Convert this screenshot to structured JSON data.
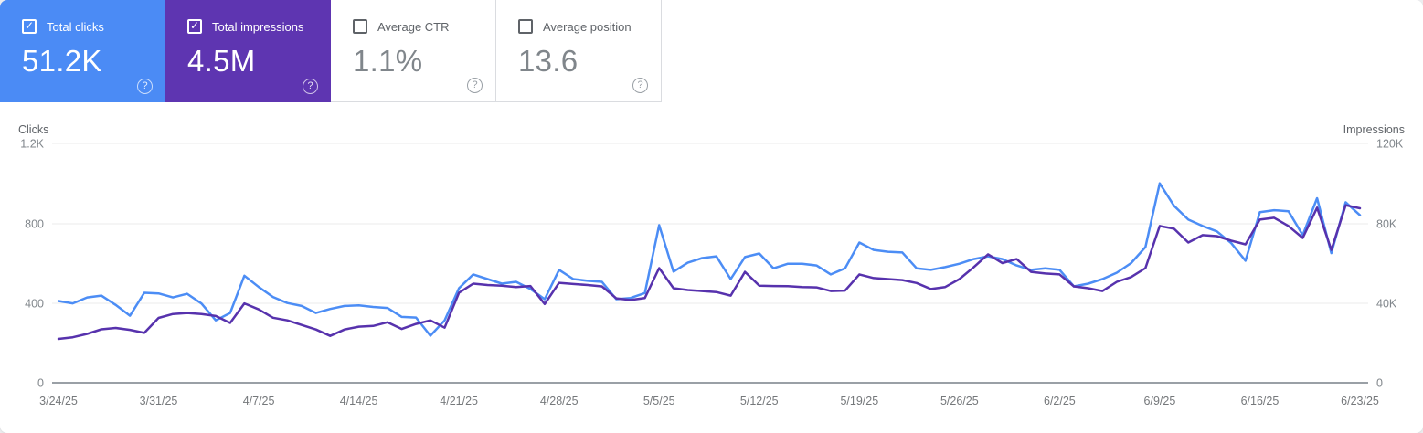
{
  "cards": [
    {
      "id": "clicks",
      "label": "Total clicks",
      "value": "51.2K",
      "checked": true,
      "color": "#4b8bf5"
    },
    {
      "id": "impressions",
      "label": "Total impressions",
      "value": "4.5M",
      "checked": true,
      "color": "#5e35b1"
    },
    {
      "id": "ctr",
      "label": "Average CTR",
      "value": "1.1%",
      "checked": false,
      "color": ""
    },
    {
      "id": "position",
      "label": "Average position",
      "value": "13.6",
      "checked": false,
      "color": ""
    }
  ],
  "icons": {
    "help": "?",
    "check": "✓"
  },
  "chart_data": {
    "type": "line",
    "frequency": "daily",
    "date_range": {
      "start": "3/24/25",
      "end": "6/23/25"
    },
    "x_tick_labels": [
      "3/24/25",
      "3/31/25",
      "4/7/25",
      "4/14/25",
      "4/21/25",
      "4/28/25",
      "5/5/25",
      "5/12/25",
      "5/19/25",
      "5/26/25",
      "6/2/25",
      "6/9/25",
      "6/16/25",
      "6/23/25"
    ],
    "left_axis": {
      "title": "Clicks",
      "ticks": [
        "1.2K",
        "800",
        "400",
        "0"
      ],
      "min": 0,
      "max": 1200
    },
    "right_axis": {
      "title": "Impressions",
      "ticks": [
        "120K",
        "80K",
        "40K",
        "0"
      ],
      "min": 0,
      "max": 120000
    },
    "grid": "horizontal",
    "legend_position": "none",
    "series": [
      {
        "name": "Total clicks",
        "axis": "left",
        "color": "#4c8df5",
        "values": [
          410,
          398,
          428,
          437,
          390,
          336,
          451,
          448,
          428,
          446,
          397,
          313,
          350,
          537,
          480,
          430,
          400,
          385,
          350,
          370,
          385,
          388,
          380,
          375,
          330,
          327,
          236,
          313,
          474,
          543,
          520,
          497,
          506,
          470,
          419,
          566,
          520,
          511,
          506,
          419,
          425,
          450,
          790,
          557,
          602,
          625,
          634,
          520,
          630,
          648,
          574,
          597,
          597,
          588,
          543,
          574,
          703,
          666,
          657,
          653,
          574,
          566,
          580,
          597,
          620,
          634,
          620,
          588,
          566,
          574,
          566,
          483,
          497,
          520,
          552,
          600,
          680,
          1000,
          887,
          818,
          786,
          759,
          700,
          612,
          855,
          865,
          860,
          740,
          925,
          650,
          905,
          840
        ]
      },
      {
        "name": "Total impressions",
        "axis": "right",
        "color": "#5732ad",
        "values": [
          22000,
          22800,
          24500,
          26800,
          27500,
          26500,
          25000,
          32500,
          34500,
          35000,
          34500,
          33500,
          30000,
          39800,
          36800,
          32600,
          31300,
          29000,
          26700,
          23500,
          26700,
          28100,
          28500,
          30300,
          27000,
          29500,
          31300,
          27600,
          45100,
          49700,
          49000,
          48700,
          48000,
          48500,
          39500,
          50100,
          49500,
          49000,
          48300,
          42300,
          41500,
          42500,
          57500,
          47400,
          46500,
          46000,
          45500,
          43700,
          55600,
          48700,
          48500,
          48400,
          48000,
          47800,
          46000,
          46200,
          54300,
          52500,
          52000,
          51500,
          50000,
          47000,
          48000,
          52000,
          58000,
          64400,
          60000,
          62000,
          55600,
          54800,
          54300,
          48300,
          47400,
          46000,
          50600,
          53000,
          57500,
          78600,
          77200,
          70300,
          74000,
          73500,
          71200,
          69400,
          81800,
          82700,
          78600,
          72600,
          87800,
          66600,
          89000,
          87500
        ]
      }
    ]
  }
}
